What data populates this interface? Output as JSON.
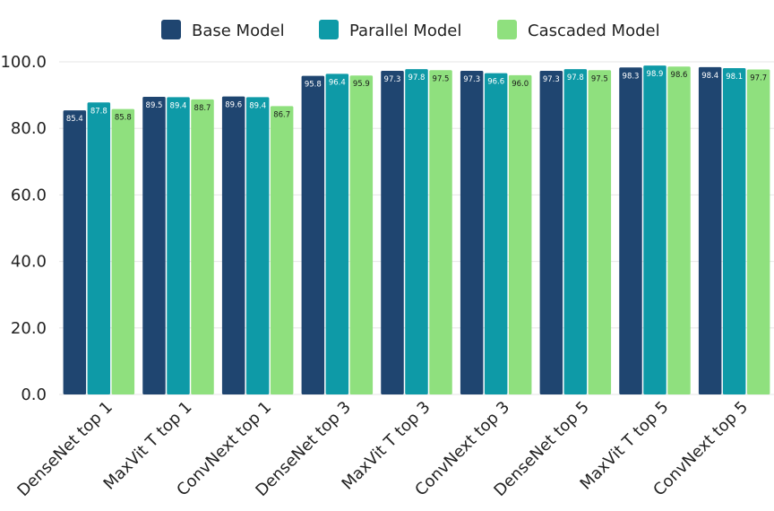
{
  "chart_data": {
    "type": "bar",
    "categories": [
      "DenseNet top 1",
      "MaxVit T top 1",
      "ConvNext top 1",
      "DenseNet top 3",
      "MaxVit T top 3",
      "ConvNext top 3",
      "DenseNet top 5",
      "MaxVit T top 5",
      "ConvNext top 5"
    ],
    "series": [
      {
        "name": "Base Model",
        "color": "#1f4570",
        "values": [
          85.4,
          89.5,
          89.6,
          95.8,
          97.3,
          97.3,
          97.3,
          98.3,
          98.4
        ],
        "labels": [
          "85.4",
          "89.5",
          "89.6",
          "95.8",
          "97.3",
          "97.3",
          "97.3",
          "98.3",
          "98.4"
        ]
      },
      {
        "name": "Parallel Model",
        "color": "#0e9aa7",
        "values": [
          87.8,
          89.4,
          89.4,
          96.4,
          97.8,
          96.6,
          97.8,
          98.9,
          98.1
        ],
        "labels": [
          "87.8",
          "89.4",
          "89.4",
          "96.4",
          "97.8",
          "96.6",
          "97.8",
          "98.9",
          "98.1"
        ]
      },
      {
        "name": "Cascaded Model",
        "color": "#8fe07e",
        "values": [
          85.8,
          88.7,
          86.7,
          95.9,
          97.5,
          96.0,
          97.5,
          98.6,
          97.7
        ],
        "labels": [
          "85.8",
          "88.7",
          "86.7",
          "95.9",
          "97.5",
          "96.0",
          "97.5",
          "98.6",
          "97.7"
        ]
      }
    ],
    "title": "",
    "xlabel": "",
    "ylabel": "",
    "ylim": [
      0,
      100
    ],
    "yticks": [
      "0.0",
      "20.0",
      "40.0",
      "60.0",
      "80.0",
      "100.0"
    ],
    "grid": true,
    "legend": "top-center",
    "x_tick_rotation_deg": -45
  }
}
